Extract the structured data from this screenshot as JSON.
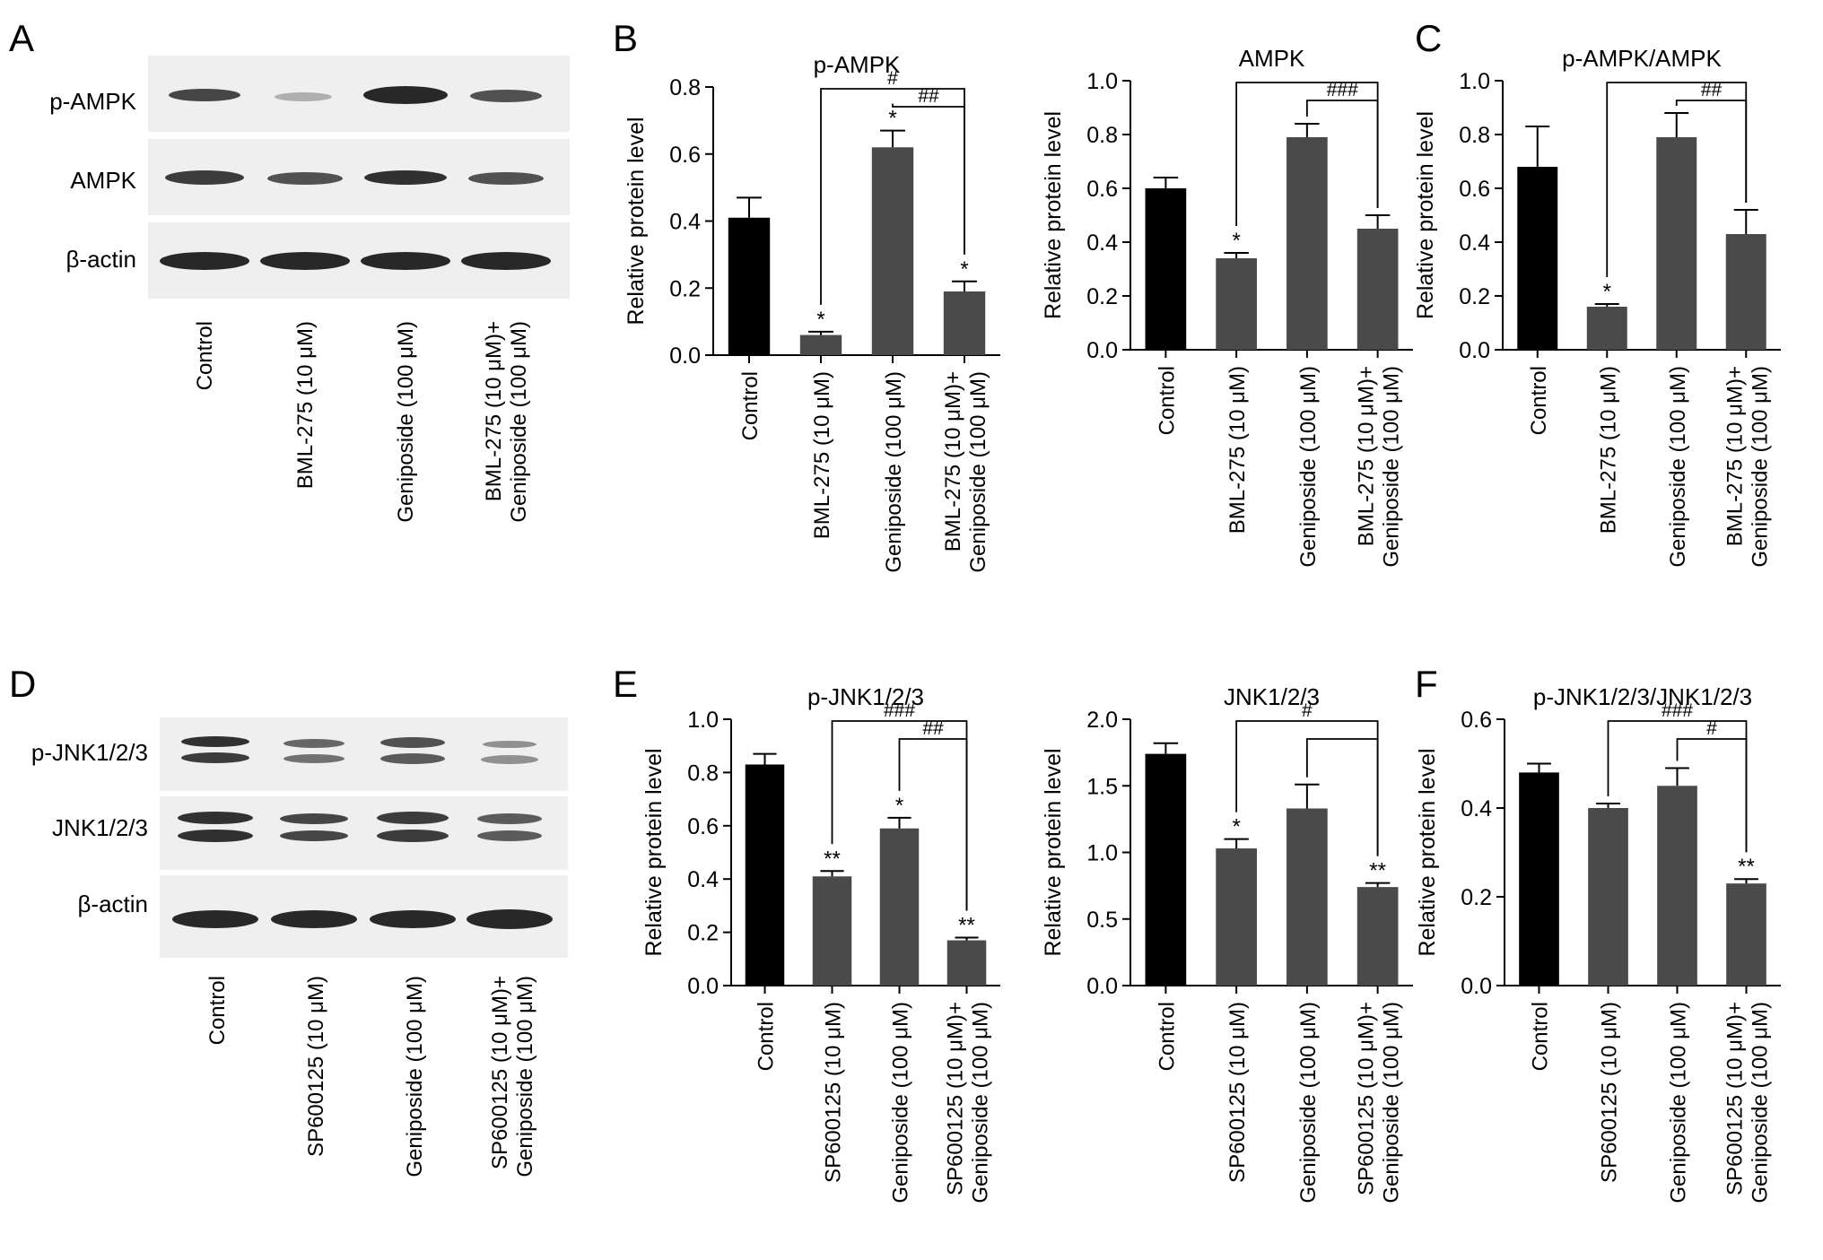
{
  "panel_letters": [
    "A",
    "B",
    "C",
    "D",
    "E",
    "F"
  ],
  "y_axis_label": "Relative protein level",
  "colors": {
    "control_bar": "#000000",
    "treatment_bar": "#4a4a4a",
    "band": "#1c1c1c",
    "blot_background": "#efefef"
  },
  "blots": [
    {
      "letter": "A",
      "labels": [
        "p-AMPK",
        "AMPK",
        "β-actin"
      ],
      "groups": [
        [
          "Control"
        ],
        [
          "BML-275 (10 μM)"
        ],
        [
          "Geniposide (100 μM)"
        ],
        [
          "BML-275 (10 μM)+",
          "Geniposide (100 μM)"
        ]
      ]
    },
    {
      "letter": "D",
      "labels": [
        "p-JNK1/2/3",
        "JNK1/2/3",
        "β-actin"
      ],
      "groups": [
        [
          "Control"
        ],
        [
          "SP600125 (10 μM)"
        ],
        [
          "Geniposide (100 μM)"
        ],
        [
          "SP600125 (10 μM)+",
          "Geniposide (100 μM)"
        ]
      ]
    }
  ],
  "chart_data": [
    {
      "type": "bar",
      "panel": "B",
      "title": "p-AMPK",
      "ylabel": "Relative protein level",
      "categories": [
        [
          "Control"
        ],
        [
          "BML-275 (10 μM)"
        ],
        [
          "Geniposide (100 μM)"
        ],
        [
          "BML-275 (10 μM)+",
          "Geniposide (100 μM)"
        ]
      ],
      "values": [
        0.41,
        0.06,
        0.62,
        0.19
      ],
      "errors": [
        0.06,
        0.01,
        0.05,
        0.03
      ],
      "marks": [
        "",
        "*",
        "*",
        "*"
      ],
      "ylim": [
        0,
        0.8
      ],
      "yticks": [
        "0.0",
        "0.2",
        "0.4",
        "0.6",
        "0.8"
      ],
      "brackets": [
        {
          "from": 1,
          "to": 3,
          "label": "#"
        },
        {
          "from": 2,
          "to": 3,
          "label": "##"
        }
      ]
    },
    {
      "type": "bar",
      "panel": "",
      "title": "AMPK",
      "ylabel": "Relative protein level",
      "categories": [
        [
          "Control"
        ],
        [
          "BML-275 (10 μM)"
        ],
        [
          "Geniposide (100 μM)"
        ],
        [
          "BML-275 (10 μM)+",
          "Geniposide (100 μM)"
        ]
      ],
      "values": [
        0.6,
        0.34,
        0.79,
        0.45
      ],
      "errors": [
        0.04,
        0.02,
        0.05,
        0.05
      ],
      "marks": [
        "",
        "*",
        "",
        ""
      ],
      "ylim": [
        0,
        1.0
      ],
      "yticks": [
        "0.0",
        "0.2",
        "0.4",
        "0.6",
        "0.8",
        "1.0"
      ],
      "brackets": [
        {
          "from": 1,
          "to": 3,
          "label": ""
        },
        {
          "from": 2,
          "to": 3,
          "label": "###"
        }
      ]
    },
    {
      "type": "bar",
      "panel": "C",
      "title": "p-AMPK/AMPK",
      "ylabel": "Relative protein level",
      "categories": [
        [
          "Control"
        ],
        [
          "BML-275 (10 μM)"
        ],
        [
          "Geniposide (100 μM)"
        ],
        [
          "BML-275 (10 μM)+",
          "Geniposide (100 μM)"
        ]
      ],
      "values": [
        0.68,
        0.16,
        0.79,
        0.43
      ],
      "errors": [
        0.15,
        0.01,
        0.09,
        0.09
      ],
      "marks": [
        "",
        "*",
        "",
        ""
      ],
      "ylim": [
        0,
        1.0
      ],
      "yticks": [
        "0.0",
        "0.2",
        "0.4",
        "0.6",
        "0.8",
        "1.0"
      ],
      "brackets": [
        {
          "from": 1,
          "to": 3,
          "label": ""
        },
        {
          "from": 2,
          "to": 3,
          "label": "##"
        }
      ]
    },
    {
      "type": "bar",
      "panel": "E",
      "title": "p-JNK1/2/3",
      "ylabel": "Relative protein level",
      "categories": [
        [
          "Control"
        ],
        [
          "SP600125 (10 μM)"
        ],
        [
          "Geniposide (100 μM)"
        ],
        [
          "SP600125 (10 μM)+",
          "Geniposide (100 μM)"
        ]
      ],
      "values": [
        0.83,
        0.41,
        0.59,
        0.17
      ],
      "errors": [
        0.04,
        0.02,
        0.04,
        0.01
      ],
      "marks": [
        "",
        "**",
        "*",
        "**"
      ],
      "ylim": [
        0,
        1.0
      ],
      "yticks": [
        "0.0",
        "0.2",
        "0.4",
        "0.6",
        "0.8",
        "1.0"
      ],
      "brackets": [
        {
          "from": 1,
          "to": 3,
          "label": "###"
        },
        {
          "from": 2,
          "to": 3,
          "label": "##"
        }
      ]
    },
    {
      "type": "bar",
      "panel": "",
      "title": "JNK1/2/3",
      "ylabel": "Relative protein level",
      "categories": [
        [
          "Control"
        ],
        [
          "SP600125 (10 μM)"
        ],
        [
          "Geniposide (100 μM)"
        ],
        [
          "SP600125 (10 μM)+",
          "Geniposide (100 μM)"
        ]
      ],
      "values": [
        1.74,
        1.03,
        1.33,
        0.74
      ],
      "errors": [
        0.08,
        0.07,
        0.18,
        0.03
      ],
      "marks": [
        "",
        "*",
        "",
        "**"
      ],
      "ylim": [
        0,
        2.0
      ],
      "yticks": [
        "0.0",
        "0.5",
        "1.0",
        "1.5",
        "2.0"
      ],
      "brackets": [
        {
          "from": 1,
          "to": 3,
          "label": "#"
        },
        {
          "from": 2,
          "to": 3,
          "label": ""
        }
      ]
    },
    {
      "type": "bar",
      "panel": "F",
      "title": "p-JNK1/2/3/JNK1/2/3",
      "ylabel": "Relative protein level",
      "categories": [
        [
          "Control"
        ],
        [
          "SP600125 (10 μM)"
        ],
        [
          "Geniposide (100 μM)"
        ],
        [
          "SP600125 (10 μM)+",
          "Geniposide (100 μM)"
        ]
      ],
      "values": [
        0.48,
        0.4,
        0.45,
        0.23
      ],
      "errors": [
        0.02,
        0.01,
        0.04,
        0.01
      ],
      "marks": [
        "",
        "",
        "",
        "**"
      ],
      "ylim": [
        0,
        0.6
      ],
      "yticks": [
        "0.0",
        "0.2",
        "0.4",
        "0.6"
      ],
      "brackets": [
        {
          "from": 1,
          "to": 3,
          "label": "###"
        },
        {
          "from": 2,
          "to": 3,
          "label": "#"
        }
      ]
    }
  ]
}
